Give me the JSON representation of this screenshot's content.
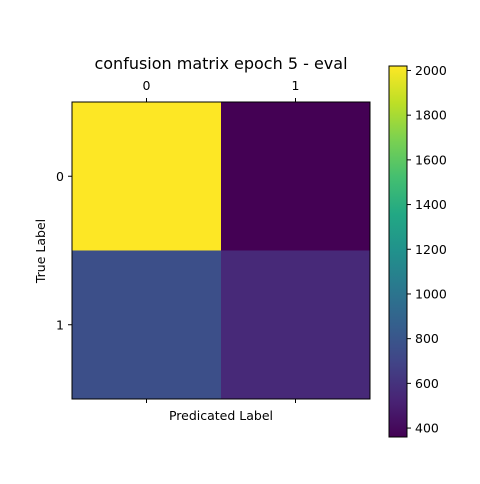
{
  "chart_data": {
    "type": "heatmap",
    "title": "confusion matrix epoch 5 - eval",
    "xlabel": "Predicated Label",
    "ylabel": "True Label",
    "x_categories": [
      "0",
      "1"
    ],
    "y_categories": [
      "0",
      "1"
    ],
    "values": [
      [
        2020,
        360
      ],
      [
        760,
        550
      ]
    ],
    "colormap": "viridis",
    "colorbar": {
      "range": [
        360,
        2020
      ],
      "ticks": [
        "400",
        "600",
        "800",
        "1000",
        "1200",
        "1400",
        "1600",
        "1800",
        "2000"
      ]
    },
    "x_tick_position": "top",
    "grid": false
  }
}
